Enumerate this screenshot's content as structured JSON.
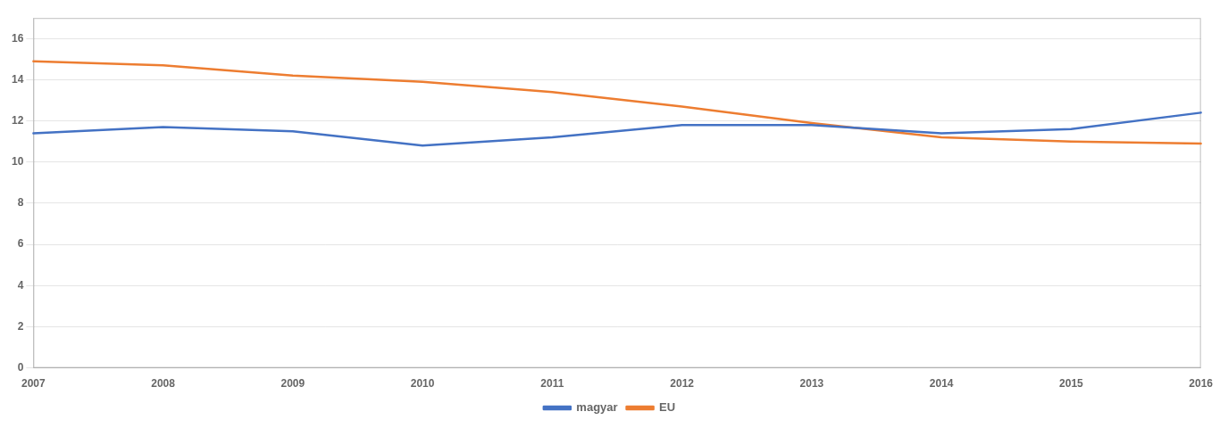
{
  "chart_data": {
    "type": "line",
    "categories": [
      "2007",
      "2008",
      "2009",
      "2010",
      "2011",
      "2012",
      "2013",
      "2014",
      "2015",
      "2016"
    ],
    "series": [
      {
        "name": "magyar",
        "color": "#4472c4",
        "values": [
          11.4,
          11.7,
          11.5,
          10.8,
          11.2,
          11.8,
          11.8,
          11.4,
          11.6,
          12.4
        ]
      },
      {
        "name": "EU",
        "color": "#ed7d31",
        "values": [
          14.9,
          14.7,
          14.2,
          13.9,
          13.4,
          12.7,
          11.9,
          11.2,
          11.0,
          10.9
        ]
      }
    ],
    "ylim": [
      0,
      17
    ],
    "yticks": [
      0,
      2,
      4,
      6,
      8,
      10,
      12,
      14,
      16
    ],
    "grid": "y",
    "legend": "bottom"
  }
}
